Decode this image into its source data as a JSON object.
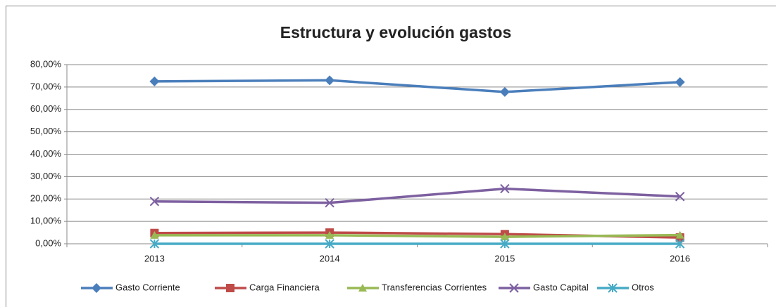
{
  "chart_data": {
    "type": "line",
    "title": "Estructura y evolución gastos",
    "categories": [
      "2013",
      "2014",
      "2015",
      "2016"
    ],
    "series": [
      {
        "name": "Gasto Corriente",
        "color": "#4a7ebb",
        "marker": "diamond",
        "values": [
          72.5,
          73.0,
          67.8,
          72.2
        ]
      },
      {
        "name": "Carga Financiera",
        "color": "#be4b48",
        "marker": "square",
        "values": [
          4.8,
          5.0,
          4.3,
          2.8
        ]
      },
      {
        "name": "Transferencias Corrientes",
        "color": "#98b954",
        "marker": "triangle",
        "values": [
          3.8,
          3.8,
          3.1,
          3.9
        ]
      },
      {
        "name": "Gasto Capital",
        "color": "#7d60a0",
        "marker": "x",
        "values": [
          18.9,
          18.3,
          24.6,
          21.1
        ]
      },
      {
        "name": "Otros",
        "color": "#46aac5",
        "marker": "star",
        "values": [
          0,
          0,
          0,
          0
        ]
      }
    ],
    "ylim": [
      0,
      80
    ],
    "yticks": [
      {
        "value": 0,
        "label": "0,00%"
      },
      {
        "value": 10,
        "label": "10,00%"
      },
      {
        "value": 20,
        "label": "20,00%"
      },
      {
        "value": 30,
        "label": "30,00%"
      },
      {
        "value": 40,
        "label": "40,00%"
      },
      {
        "value": 50,
        "label": "50,00%"
      },
      {
        "value": 60,
        "label": "60,00%"
      },
      {
        "value": 70,
        "label": "70,00%"
      },
      {
        "value": 80,
        "label": "80,00%"
      }
    ],
    "grid": true,
    "legend": "bottom"
  }
}
